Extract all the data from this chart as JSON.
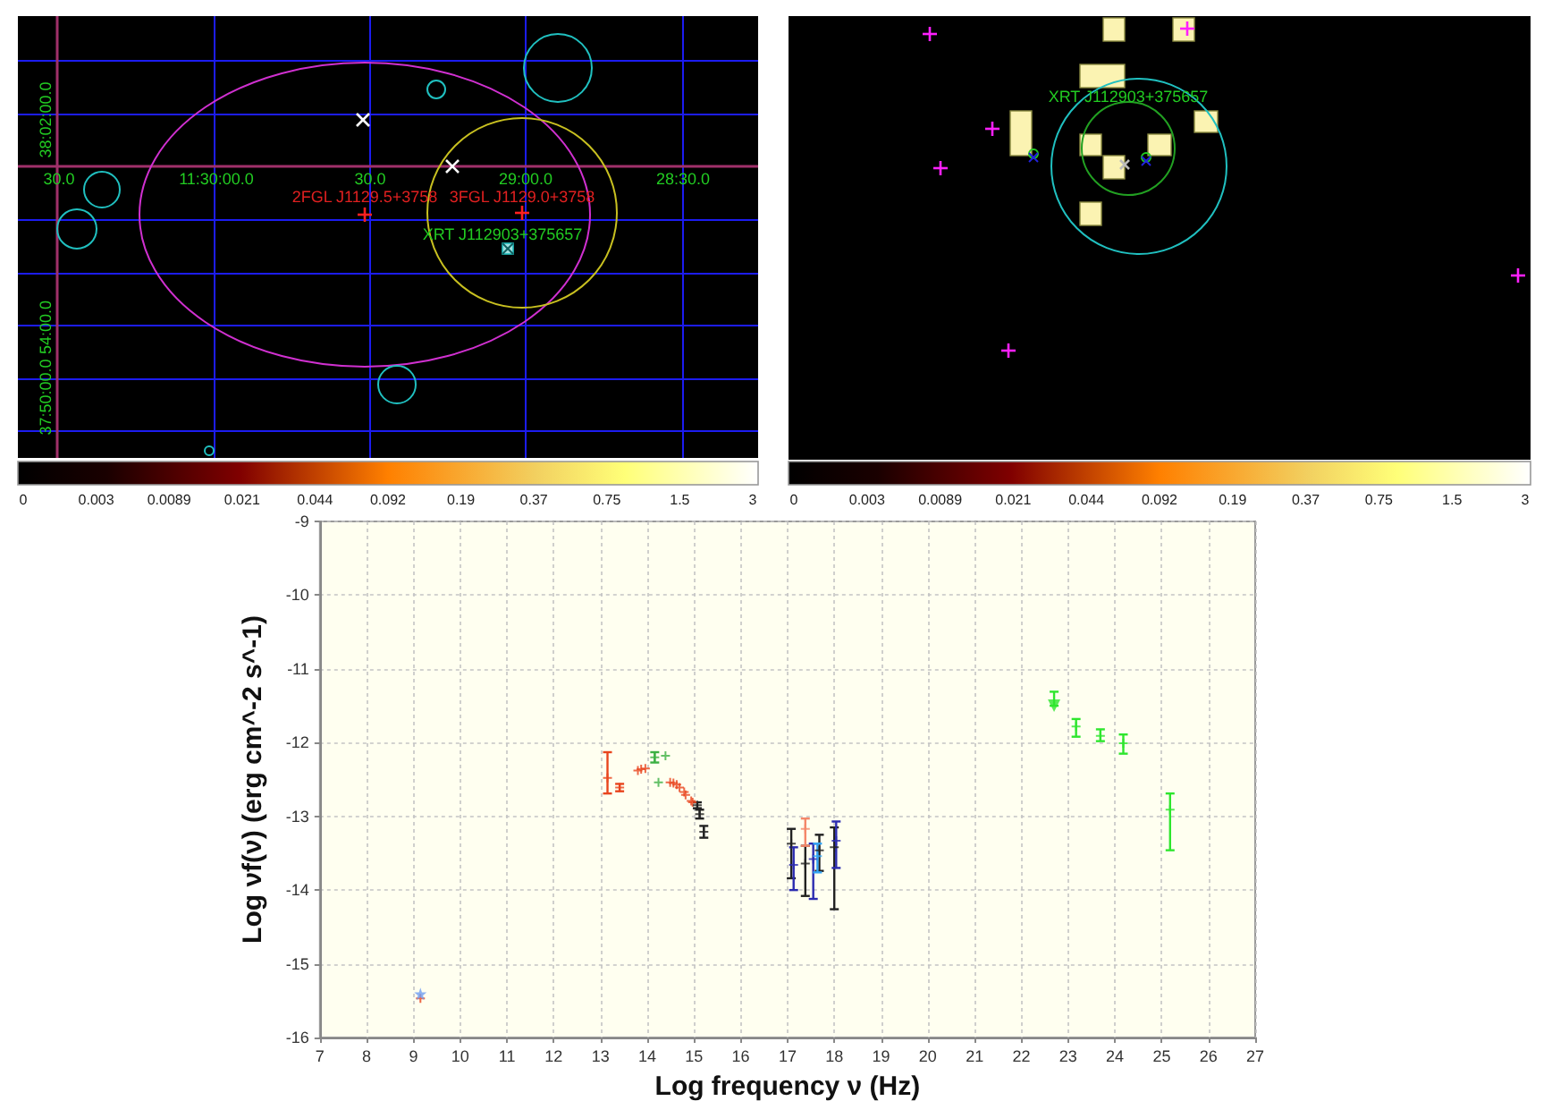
{
  "chart_data": [
    {
      "type": "other",
      "annotations": [
        "30.0",
        "11:30:00.0",
        "30.0",
        "29:00.0",
        "28:30.0",
        "38:02:00.0",
        "54:00.0",
        "37:50:00.0",
        "2FGL J1129.5+3758",
        "3FGL J1129.0+3758",
        "XRT J112903+375657",
        "0",
        "0.003",
        "0.0089",
        "0.021",
        "0.044",
        "0.092",
        "0.19",
        "0.37",
        "0.75",
        "1.5",
        "3"
      ]
    },
    {
      "type": "other",
      "annotations": [
        "XRT J112903+375657",
        "0",
        "0.003",
        "0.0089",
        "0.021",
        "0.044",
        "0.092",
        "0.19",
        "0.37",
        "0.75",
        "1.5",
        "3"
      ]
    },
    {
      "type": "scatter",
      "xlabel": "Log frequency ν (Hz)",
      "ylabel": "Log νf(ν) (erg cm^-2 s^-1)",
      "xlim": [
        7,
        27
      ],
      "ylim": [
        -16,
        -9
      ],
      "xticks": [
        7,
        8,
        9,
        10,
        11,
        12,
        13,
        14,
        15,
        16,
        17,
        18,
        19,
        20,
        21,
        22,
        23,
        24,
        25,
        26,
        27
      ],
      "yticks": [
        -16,
        -15,
        -14,
        -13,
        -12,
        -11,
        -10,
        -9
      ],
      "grid": true,
      "marker": "cross",
      "series": [
        {
          "color": "#e8451e",
          "x": [
            9.15,
            13.15,
            13.41,
            13.8,
            13.87,
            13.96,
            14.49,
            14.56,
            14.63,
            14.69,
            14.79,
            14.82,
            14.94,
            14.97
          ],
          "values": [
            -15.47,
            -12.48,
            -12.61,
            -12.38,
            -12.36,
            -12.35,
            -12.54,
            -12.55,
            -12.57,
            -12.61,
            -12.67,
            -12.71,
            -12.79,
            -12.81
          ],
          "errors": [
            null,
            [
              -12.69,
              -12.13
            ],
            [
              -12.66,
              -12.56
            ],
            null,
            null,
            null,
            null,
            null,
            null,
            null,
            null,
            null,
            null,
            null
          ]
        },
        {
          "color": "#6f9df2",
          "marker": "star",
          "x": [
            9.15
          ],
          "values": [
            -15.41
          ]
        },
        {
          "color": "#3cb043",
          "x": [
            14.16,
            14.24,
            14.39
          ],
          "values": [
            -12.2,
            -12.54,
            -12.18
          ],
          "errors": [
            [
              -12.27,
              -12.13
            ],
            null,
            null
          ]
        },
        {
          "color": "#222222",
          "x": [
            15.07,
            15.12,
            15.21,
            17.08,
            17.38,
            17.68,
            18.0
          ],
          "values": [
            -12.85,
            -12.97,
            -13.21,
            -13.37,
            -13.64,
            -13.46,
            -13.42
          ],
          "errors": [
            [
              -12.89,
              -12.81
            ],
            [
              -13.03,
              -12.91
            ],
            [
              -13.29,
              -13.13
            ],
            [
              -13.84,
              -13.17
            ],
            [
              -14.08,
              -13.4
            ],
            [
              -13.74,
              -13.25
            ],
            [
              -14.26,
              -13.15
            ]
          ]
        },
        {
          "color": "#2b2bb0",
          "x": [
            17.13,
            17.55,
            18.04
          ],
          "values": [
            -13.66,
            -13.58,
            -13.33
          ],
          "errors": [
            [
              -14.0,
              -13.42
            ],
            [
              -14.12,
              -13.37
            ],
            [
              -13.7,
              -13.07
            ]
          ]
        },
        {
          "color": "#f4876a",
          "x": [
            17.38
          ],
          "values": [
            -13.17
          ],
          "errors": [
            [
              -13.4,
              -13.03
            ]
          ]
        },
        {
          "color": "#35a4f4",
          "x": [
            17.64
          ],
          "values": [
            -13.54
          ],
          "errors": [
            [
              -13.76,
              -13.37
            ]
          ]
        },
        {
          "color": "#2ee62e",
          "x": [
            23.17,
            23.69,
            24.18,
            25.18
          ],
          "values": [
            -11.78,
            -11.91,
            -12.01,
            -12.91
          ],
          "errors": [
            [
              -11.92,
              -11.68
            ],
            [
              -11.98,
              -11.82
            ],
            [
              -12.15,
              -11.89
            ],
            [
              -13.46,
              -12.69
            ]
          ]
        },
        {
          "color": "#2ee62e",
          "marker": "triangle",
          "x": [
            22.7
          ],
          "values": [
            -11.5
          ],
          "errors": [
            [
              -11.5,
              -11.31
            ]
          ]
        }
      ]
    }
  ]
}
